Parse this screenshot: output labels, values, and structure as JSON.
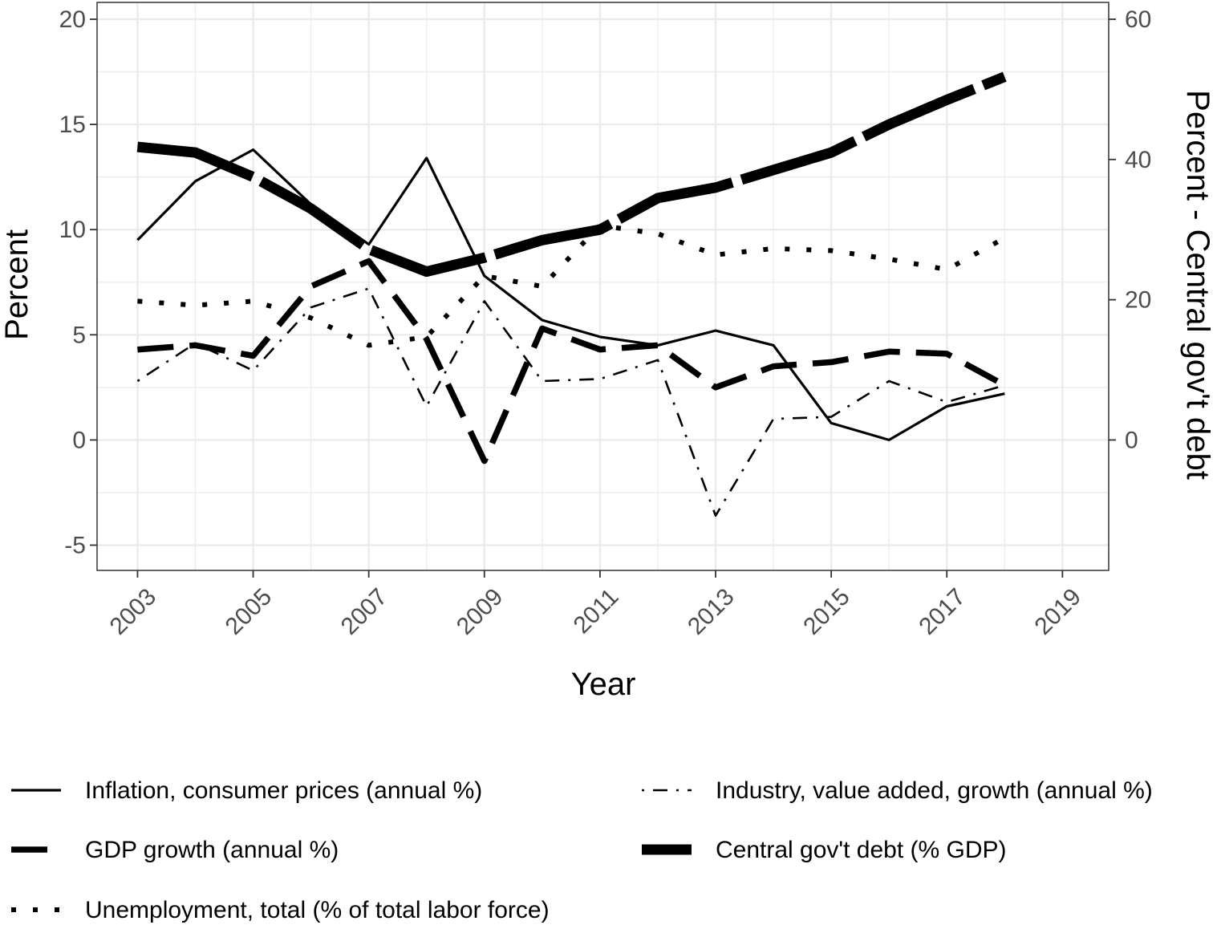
{
  "chart_data": {
    "type": "line",
    "xlabel": "Year",
    "ylabel": "Percent",
    "y2label": "Percent - Central gov't debt",
    "xlim": [
      2002.3,
      2019.8
    ],
    "ylim": [
      -6.2,
      20.8
    ],
    "y2lim": [
      -18.6,
      62.4
    ],
    "x_ticks": [
      2003,
      2005,
      2007,
      2009,
      2011,
      2013,
      2015,
      2017,
      2019
    ],
    "y_ticks": [
      -5,
      0,
      5,
      10,
      15,
      20
    ],
    "y2_ticks": [
      0,
      20,
      40,
      60
    ],
    "grid": true,
    "legend_position": "bottom",
    "x": [
      2003,
      2004,
      2005,
      2006,
      2007,
      2008,
      2009,
      2010,
      2011,
      2012,
      2013,
      2014,
      2015,
      2016,
      2017,
      2018
    ],
    "series": [
      {
        "name": "Inflation, consumer prices (annual %)",
        "axis": "left",
        "style": "solid",
        "values": [
          9.5,
          12.3,
          13.8,
          11.2,
          9.3,
          13.4,
          7.8,
          5.7,
          4.9,
          4.5,
          5.2,
          4.5,
          0.8,
          0.0,
          1.6,
          2.2
        ]
      },
      {
        "name": "Industry, value added, growth (annual %)",
        "axis": "left",
        "style": "dotdash",
        "values": [
          2.8,
          4.6,
          3.3,
          6.3,
          7.2,
          1.6,
          6.6,
          2.8,
          2.9,
          3.8,
          -3.6,
          1.0,
          1.1,
          2.8,
          1.8,
          2.6
        ]
      },
      {
        "name": "GDP growth (annual %)",
        "axis": "left",
        "style": "longdash",
        "values": [
          4.3,
          4.5,
          4.0,
          7.3,
          8.5,
          4.8,
          -1.0,
          5.3,
          4.3,
          4.5,
          2.5,
          3.5,
          3.7,
          4.2,
          4.1,
          2.6
        ]
      },
      {
        "name": "Central gov't debt (% GDP)",
        "axis": "right",
        "style": "thick-dash",
        "values": [
          41.8,
          41.0,
          37.5,
          33.0,
          27.2,
          24.0,
          26.0,
          28.5,
          30.0,
          34.5,
          36.0,
          38.5,
          41.0,
          45.0,
          48.5,
          51.8
        ]
      },
      {
        "name": "Unemployment, total (% of total labor force)",
        "axis": "left",
        "style": "dotted",
        "values": [
          6.6,
          6.4,
          6.6,
          5.8,
          4.5,
          4.9,
          7.8,
          7.3,
          10.2,
          9.8,
          8.8,
          9.1,
          9.0,
          8.6,
          8.1,
          9.6
        ]
      }
    ],
    "legend": [
      {
        "series": 0,
        "col": 0,
        "row": 0
      },
      {
        "series": 1,
        "col": 1,
        "row": 0
      },
      {
        "series": 2,
        "col": 0,
        "row": 1
      },
      {
        "series": 3,
        "col": 1,
        "row": 1
      },
      {
        "series": 4,
        "col": 0,
        "row": 2
      }
    ]
  }
}
